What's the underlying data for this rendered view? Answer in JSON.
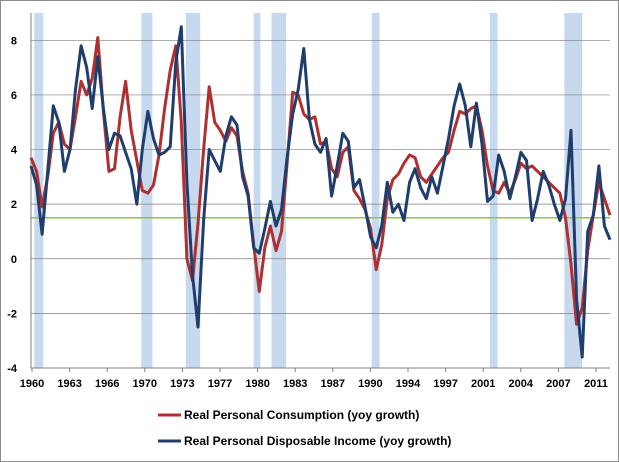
{
  "chart_data": {
    "type": "line",
    "title": "",
    "xlabel": "",
    "ylabel": "",
    "xlim": [
      1960,
      2012
    ],
    "ylim": [
      -4,
      9
    ],
    "yticks": [
      -4,
      -2,
      0,
      2,
      4,
      6,
      8
    ],
    "xtick_labels": [
      "1960",
      "1963",
      "1966",
      "1970",
      "1973",
      "1977",
      "1980",
      "1983",
      "1987",
      "1990",
      "1994",
      "1997",
      "2001",
      "2004",
      "2007",
      "2011"
    ],
    "grid": "horizontal",
    "legend_position": "bottom",
    "reference_line": {
      "value": 1.5,
      "color": "#8dc63f"
    },
    "recessions": [
      [
        1960.3,
        1961.1
      ],
      [
        1969.9,
        1970.9
      ],
      [
        1973.9,
        1975.2
      ],
      [
        1980.0,
        1980.6
      ],
      [
        1981.6,
        1982.9
      ],
      [
        1990.6,
        1991.3
      ],
      [
        2001.2,
        2001.9
      ],
      [
        2007.9,
        2009.5
      ]
    ],
    "series": [
      {
        "name": "Real Personal Consumption  (yoy growth)",
        "color": "#b03030",
        "points": [
          [
            1960.0,
            3.7
          ],
          [
            1960.5,
            3.2
          ],
          [
            1961.0,
            1.9
          ],
          [
            1961.5,
            3.0
          ],
          [
            1962.0,
            4.6
          ],
          [
            1962.5,
            5.0
          ],
          [
            1963.0,
            4.2
          ],
          [
            1963.5,
            4.0
          ],
          [
            1964.0,
            5.2
          ],
          [
            1964.5,
            6.5
          ],
          [
            1965.0,
            6.0
          ],
          [
            1965.5,
            6.6
          ],
          [
            1966.0,
            8.1
          ],
          [
            1966.5,
            5.4
          ],
          [
            1967.0,
            3.2
          ],
          [
            1967.5,
            3.3
          ],
          [
            1968.0,
            5.2
          ],
          [
            1968.5,
            6.5
          ],
          [
            1969.0,
            4.7
          ],
          [
            1969.5,
            3.6
          ],
          [
            1970.0,
            2.5
          ],
          [
            1970.5,
            2.4
          ],
          [
            1971.0,
            2.7
          ],
          [
            1971.5,
            3.8
          ],
          [
            1972.0,
            5.5
          ],
          [
            1972.5,
            6.9
          ],
          [
            1973.0,
            7.8
          ],
          [
            1973.5,
            5.0
          ],
          [
            1974.0,
            0.0
          ],
          [
            1974.5,
            -0.8
          ],
          [
            1975.0,
            1.3
          ],
          [
            1975.5,
            4.0
          ],
          [
            1976.0,
            6.3
          ],
          [
            1976.5,
            5.0
          ],
          [
            1977.0,
            4.7
          ],
          [
            1977.5,
            4.3
          ],
          [
            1978.0,
            4.8
          ],
          [
            1978.5,
            4.5
          ],
          [
            1979.0,
            3.2
          ],
          [
            1979.5,
            2.4
          ],
          [
            1980.0,
            0.5
          ],
          [
            1980.5,
            -1.2
          ],
          [
            1981.0,
            0.4
          ],
          [
            1981.5,
            1.2
          ],
          [
            1982.0,
            0.3
          ],
          [
            1982.5,
            1.0
          ],
          [
            1983.0,
            3.5
          ],
          [
            1983.5,
            6.1
          ],
          [
            1984.0,
            6.0
          ],
          [
            1984.5,
            5.3
          ],
          [
            1985.0,
            5.1
          ],
          [
            1985.5,
            5.2
          ],
          [
            1986.0,
            4.2
          ],
          [
            1986.5,
            4.3
          ],
          [
            1987.0,
            3.3
          ],
          [
            1987.5,
            3.0
          ],
          [
            1988.0,
            3.9
          ],
          [
            1988.5,
            4.1
          ],
          [
            1989.0,
            2.5
          ],
          [
            1989.5,
            2.2
          ],
          [
            1990.0,
            1.8
          ],
          [
            1990.5,
            1.1
          ],
          [
            1991.0,
            -0.4
          ],
          [
            1991.5,
            0.5
          ],
          [
            1992.0,
            2.2
          ],
          [
            1992.5,
            2.9
          ],
          [
            1993.0,
            3.1
          ],
          [
            1993.5,
            3.5
          ],
          [
            1994.0,
            3.8
          ],
          [
            1994.5,
            3.7
          ],
          [
            1995.0,
            3.0
          ],
          [
            1995.5,
            2.8
          ],
          [
            1996.0,
            3.1
          ],
          [
            1996.5,
            3.4
          ],
          [
            1997.0,
            3.7
          ],
          [
            1997.5,
            3.9
          ],
          [
            1998.0,
            4.7
          ],
          [
            1998.5,
            5.4
          ],
          [
            1999.0,
            5.3
          ],
          [
            1999.5,
            5.5
          ],
          [
            2000.0,
            5.6
          ],
          [
            2000.5,
            4.7
          ],
          [
            2001.0,
            3.4
          ],
          [
            2001.5,
            2.5
          ],
          [
            2002.0,
            2.4
          ],
          [
            2002.5,
            2.8
          ],
          [
            2003.0,
            2.4
          ],
          [
            2003.5,
            2.9
          ],
          [
            2004.0,
            3.5
          ],
          [
            2004.5,
            3.3
          ],
          [
            2005.0,
            3.4
          ],
          [
            2005.5,
            3.2
          ],
          [
            2006.0,
            3.0
          ],
          [
            2006.5,
            2.8
          ],
          [
            2007.0,
            2.6
          ],
          [
            2007.5,
            2.4
          ],
          [
            2008.0,
            1.5
          ],
          [
            2008.5,
            -0.2
          ],
          [
            2009.0,
            -2.4
          ],
          [
            2009.5,
            -1.8
          ],
          [
            2010.0,
            0.3
          ],
          [
            2010.5,
            1.6
          ],
          [
            2011.0,
            2.8
          ],
          [
            2011.5,
            2.2
          ],
          [
            2012.0,
            1.6
          ]
        ]
      },
      {
        "name": "Real Personal Disposable  Income (yoy growth)",
        "color": "#1f3e6e",
        "points": [
          [
            1960.0,
            3.4
          ],
          [
            1960.5,
            2.7
          ],
          [
            1961.0,
            0.9
          ],
          [
            1961.5,
            3.2
          ],
          [
            1962.0,
            5.6
          ],
          [
            1962.5,
            5.0
          ],
          [
            1963.0,
            3.2
          ],
          [
            1963.5,
            4.0
          ],
          [
            1964.0,
            6.2
          ],
          [
            1964.5,
            7.8
          ],
          [
            1965.0,
            7.0
          ],
          [
            1965.5,
            5.5
          ],
          [
            1966.0,
            7.4
          ],
          [
            1966.5,
            5.5
          ],
          [
            1967.0,
            4.0
          ],
          [
            1967.5,
            4.6
          ],
          [
            1968.0,
            4.5
          ],
          [
            1968.5,
            3.9
          ],
          [
            1969.0,
            3.3
          ],
          [
            1969.5,
            2.0
          ],
          [
            1970.0,
            4.0
          ],
          [
            1970.5,
            5.4
          ],
          [
            1971.0,
            4.4
          ],
          [
            1971.5,
            3.8
          ],
          [
            1972.0,
            3.9
          ],
          [
            1972.5,
            4.1
          ],
          [
            1973.0,
            7.2
          ],
          [
            1973.5,
            8.5
          ],
          [
            1974.0,
            2.8
          ],
          [
            1974.5,
            -0.6
          ],
          [
            1975.0,
            -2.5
          ],
          [
            1975.5,
            1.4
          ],
          [
            1976.0,
            4.0
          ],
          [
            1976.5,
            3.6
          ],
          [
            1977.0,
            3.2
          ],
          [
            1977.5,
            4.5
          ],
          [
            1978.0,
            5.2
          ],
          [
            1978.5,
            4.9
          ],
          [
            1979.0,
            3.0
          ],
          [
            1979.5,
            2.3
          ],
          [
            1980.0,
            0.4
          ],
          [
            1980.5,
            0.2
          ],
          [
            1981.0,
            1.1
          ],
          [
            1981.5,
            2.1
          ],
          [
            1982.0,
            1.2
          ],
          [
            1982.5,
            1.8
          ],
          [
            1983.0,
            3.7
          ],
          [
            1983.5,
            5.3
          ],
          [
            1984.0,
            6.2
          ],
          [
            1984.5,
            7.7
          ],
          [
            1985.0,
            5.1
          ],
          [
            1985.5,
            4.2
          ],
          [
            1986.0,
            3.9
          ],
          [
            1986.5,
            4.4
          ],
          [
            1987.0,
            2.3
          ],
          [
            1987.5,
            3.4
          ],
          [
            1988.0,
            4.6
          ],
          [
            1988.5,
            4.3
          ],
          [
            1989.0,
            2.6
          ],
          [
            1989.5,
            2.9
          ],
          [
            1990.0,
            1.9
          ],
          [
            1990.5,
            0.8
          ],
          [
            1991.0,
            0.4
          ],
          [
            1991.5,
            1.2
          ],
          [
            1992.0,
            2.8
          ],
          [
            1992.5,
            1.7
          ],
          [
            1993.0,
            2.0
          ],
          [
            1993.5,
            1.4
          ],
          [
            1994.0,
            2.8
          ],
          [
            1994.5,
            3.3
          ],
          [
            1995.0,
            2.6
          ],
          [
            1995.5,
            2.2
          ],
          [
            1996.0,
            3.0
          ],
          [
            1996.5,
            2.4
          ],
          [
            1997.0,
            3.4
          ],
          [
            1997.5,
            4.4
          ],
          [
            1998.0,
            5.6
          ],
          [
            1998.5,
            6.4
          ],
          [
            1999.0,
            5.6
          ],
          [
            1999.5,
            4.1
          ],
          [
            2000.0,
            5.7
          ],
          [
            2000.5,
            4.2
          ],
          [
            2001.0,
            2.1
          ],
          [
            2001.5,
            2.3
          ],
          [
            2002.0,
            3.8
          ],
          [
            2002.5,
            3.2
          ],
          [
            2003.0,
            2.2
          ],
          [
            2003.5,
            3.0
          ],
          [
            2004.0,
            3.9
          ],
          [
            2004.5,
            3.6
          ],
          [
            2005.0,
            1.4
          ],
          [
            2005.5,
            2.2
          ],
          [
            2006.0,
            3.2
          ],
          [
            2006.5,
            2.7
          ],
          [
            2007.0,
            2.0
          ],
          [
            2007.5,
            1.4
          ],
          [
            2008.0,
            2.2
          ],
          [
            2008.5,
            4.7
          ],
          [
            2009.0,
            -1.5
          ],
          [
            2009.5,
            -3.6
          ],
          [
            2010.0,
            1.0
          ],
          [
            2010.5,
            1.6
          ],
          [
            2011.0,
            3.4
          ],
          [
            2011.5,
            1.2
          ],
          [
            2012.0,
            0.7
          ]
        ]
      }
    ]
  }
}
